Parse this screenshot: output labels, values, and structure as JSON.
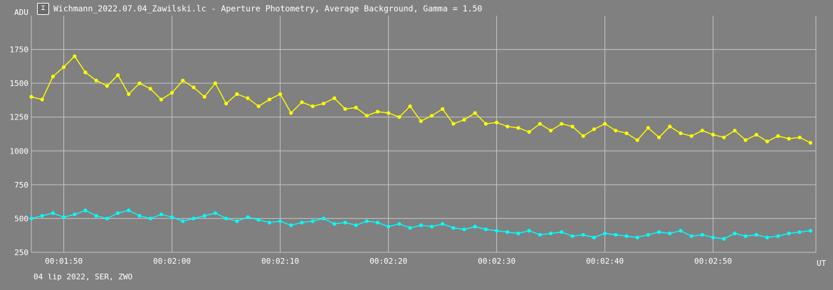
{
  "window": {
    "title": "Wichmann_2022.07.04_Zawilski.lc - Aperture Photometry, Average Background, Gamma = 1.50",
    "icon": "chart-window-icon"
  },
  "footer_text": "04 lip 2022, SER, ZWO",
  "colors": {
    "background": "#808080",
    "grid": "#c4c4c4",
    "series_1": "#ffff00",
    "series_2": "#00ffff"
  },
  "chart_data": {
    "type": "line",
    "title": "",
    "ylabel": "ADU",
    "xlabel": "UT",
    "xlim": [
      "00:01:47",
      "00:02:59.5"
    ],
    "ylim": [
      250,
      2000
    ],
    "grid": true,
    "x_ticks": [
      "00:01:50",
      "00:02:00",
      "00:02:10",
      "00:02:20",
      "00:02:30",
      "00:02:40",
      "00:02:50"
    ],
    "y_ticks": [
      250,
      500,
      750,
      1000,
      1250,
      1500,
      1750
    ],
    "series": [
      {
        "color": "#ffff00",
        "x": [
          "00:01:47",
          "00:01:48",
          "00:01:49",
          "00:01:50",
          "00:01:51",
          "00:01:52",
          "00:01:53",
          "00:01:54",
          "00:01:55",
          "00:01:56",
          "00:01:57",
          "00:01:58",
          "00:01:59",
          "00:02:00",
          "00:02:01",
          "00:02:02",
          "00:02:03",
          "00:02:04",
          "00:02:05",
          "00:02:06",
          "00:02:07",
          "00:02:08",
          "00:02:09",
          "00:02:10",
          "00:02:11",
          "00:02:12",
          "00:02:13",
          "00:02:14",
          "00:02:15",
          "00:02:16",
          "00:02:17",
          "00:02:18",
          "00:02:19",
          "00:02:20",
          "00:02:21",
          "00:02:22",
          "00:02:23",
          "00:02:24",
          "00:02:25",
          "00:02:26",
          "00:02:27",
          "00:02:28",
          "00:02:29",
          "00:02:30",
          "00:02:31",
          "00:02:32",
          "00:02:33",
          "00:02:34",
          "00:02:35",
          "00:02:36",
          "00:02:37",
          "00:02:38",
          "00:02:39",
          "00:02:40",
          "00:02:41",
          "00:02:42",
          "00:02:43",
          "00:02:44",
          "00:02:45",
          "00:02:46",
          "00:02:47",
          "00:02:48",
          "00:02:49",
          "00:02:50",
          "00:02:51",
          "00:02:52",
          "00:02:53",
          "00:02:54",
          "00:02:55",
          "00:02:56",
          "00:02:57",
          "00:02:58",
          "00:02:59"
        ],
        "values": [
          1400,
          1380,
          1550,
          1620,
          1700,
          1580,
          1520,
          1480,
          1560,
          1420,
          1500,
          1460,
          1380,
          1430,
          1520,
          1470,
          1400,
          1500,
          1350,
          1420,
          1390,
          1330,
          1380,
          1420,
          1280,
          1360,
          1330,
          1350,
          1390,
          1310,
          1320,
          1260,
          1290,
          1280,
          1250,
          1330,
          1220,
          1260,
          1310,
          1200,
          1230,
          1280,
          1200,
          1210,
          1180,
          1170,
          1140,
          1200,
          1150,
          1200,
          1180,
          1110,
          1160,
          1200,
          1150,
          1130,
          1080,
          1170,
          1100,
          1180,
          1130,
          1110,
          1150,
          1120,
          1100,
          1150,
          1080,
          1120,
          1070,
          1110,
          1090,
          1100,
          1060
        ]
      },
      {
        "color": "#00ffff",
        "x": [
          "00:01:47",
          "00:01:48",
          "00:01:49",
          "00:01:50",
          "00:01:51",
          "00:01:52",
          "00:01:53",
          "00:01:54",
          "00:01:55",
          "00:01:56",
          "00:01:57",
          "00:01:58",
          "00:01:59",
          "00:02:00",
          "00:02:01",
          "00:02:02",
          "00:02:03",
          "00:02:04",
          "00:02:05",
          "00:02:06",
          "00:02:07",
          "00:02:08",
          "00:02:09",
          "00:02:10",
          "00:02:11",
          "00:02:12",
          "00:02:13",
          "00:02:14",
          "00:02:15",
          "00:02:16",
          "00:02:17",
          "00:02:18",
          "00:02:19",
          "00:02:20",
          "00:02:21",
          "00:02:22",
          "00:02:23",
          "00:02:24",
          "00:02:25",
          "00:02:26",
          "00:02:27",
          "00:02:28",
          "00:02:29",
          "00:02:30",
          "00:02:31",
          "00:02:32",
          "00:02:33",
          "00:02:34",
          "00:02:35",
          "00:02:36",
          "00:02:37",
          "00:02:38",
          "00:02:39",
          "00:02:40",
          "00:02:41",
          "00:02:42",
          "00:02:43",
          "00:02:44",
          "00:02:45",
          "00:02:46",
          "00:02:47",
          "00:02:48",
          "00:02:49",
          "00:02:50",
          "00:02:51",
          "00:02:52",
          "00:02:53",
          "00:02:54",
          "00:02:55",
          "00:02:56",
          "00:02:57",
          "00:02:58",
          "00:02:59"
        ],
        "values": [
          500,
          520,
          540,
          510,
          530,
          560,
          520,
          500,
          540,
          560,
          520,
          500,
          530,
          510,
          480,
          500,
          520,
          540,
          500,
          480,
          510,
          490,
          470,
          480,
          450,
          470,
          480,
          500,
          460,
          470,
          450,
          480,
          470,
          440,
          460,
          430,
          450,
          440,
          460,
          430,
          420,
          440,
          420,
          410,
          400,
          390,
          410,
          380,
          390,
          400,
          370,
          380,
          360,
          390,
          380,
          370,
          360,
          380,
          400,
          390,
          410,
          370,
          380,
          360,
          350,
          390,
          370,
          380,
          360,
          370,
          390,
          400,
          410
        ]
      }
    ]
  }
}
